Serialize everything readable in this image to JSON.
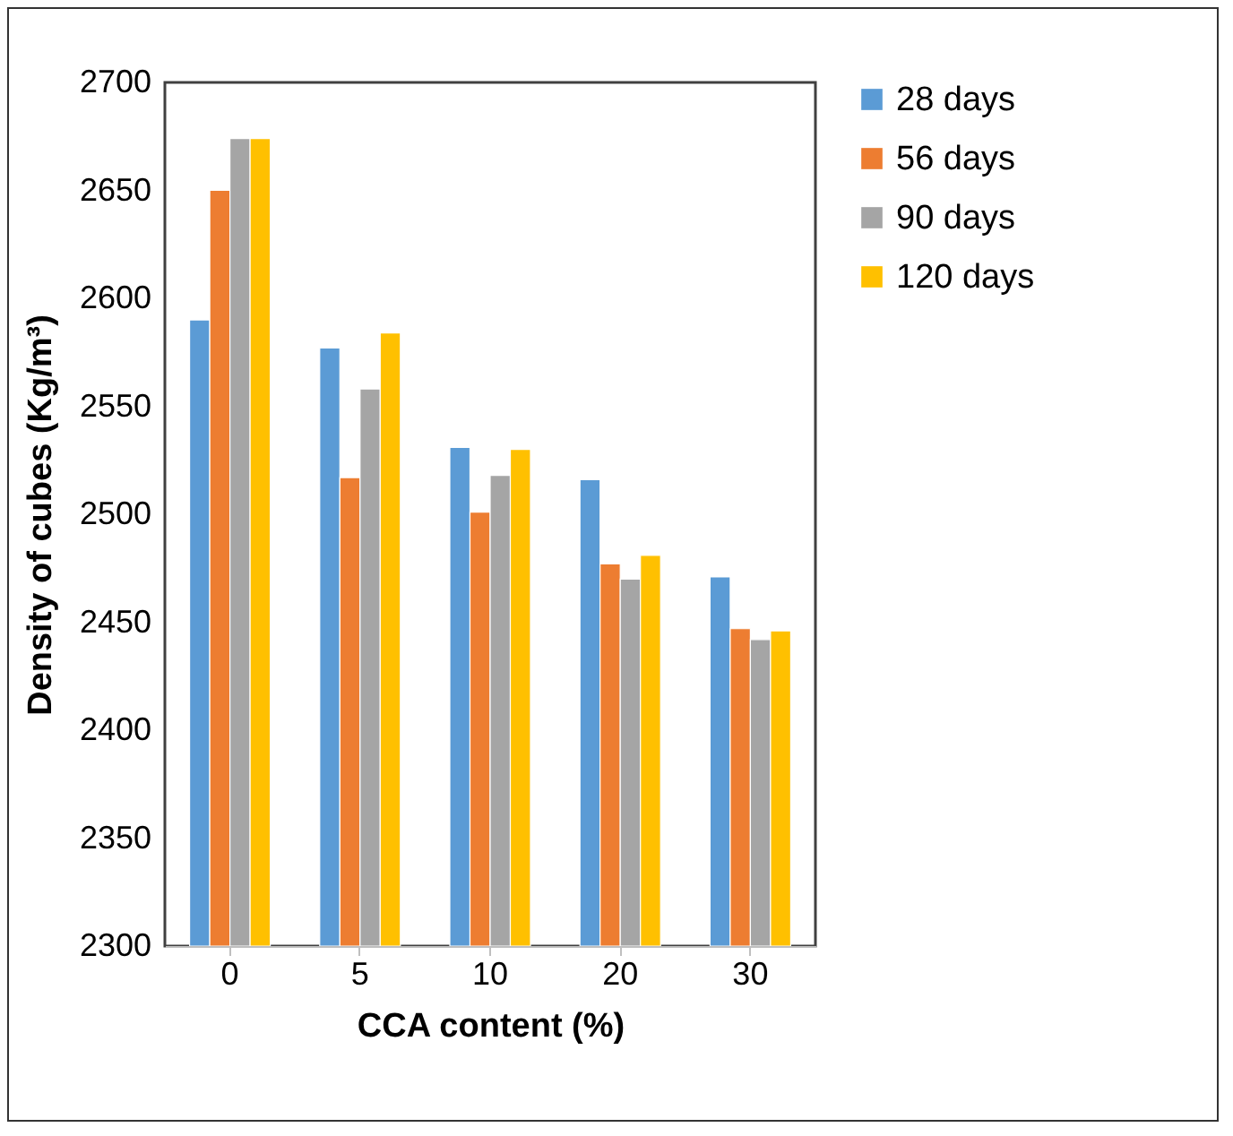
{
  "chart_data": {
    "type": "bar",
    "xlabel": "CCA content (%)",
    "ylabel": "Density of cubes (Kg/m³)",
    "categories": [
      "0",
      "5",
      "10",
      "20",
      "30"
    ],
    "series": [
      {
        "name": "28 days",
        "color": "#5b9bd5",
        "values": [
          2590,
          2577,
          2531,
          2516,
          2471
        ]
      },
      {
        "name": "56 days",
        "color": "#ed7d31",
        "values": [
          2650,
          2517,
          2501,
          2477,
          2447
        ]
      },
      {
        "name": "90 days",
        "color": "#a5a5a5",
        "values": [
          2674,
          2558,
          2518,
          2470,
          2442
        ]
      },
      {
        "name": "120 days",
        "color": "#ffc000",
        "values": [
          2674,
          2584,
          2530,
          2481,
          2446
        ]
      }
    ],
    "ylim": [
      2300,
      2700
    ],
    "yticks": [
      2300,
      2350,
      2400,
      2450,
      2500,
      2550,
      2600,
      2650,
      2700
    ],
    "grid": false,
    "legend": "right"
  }
}
